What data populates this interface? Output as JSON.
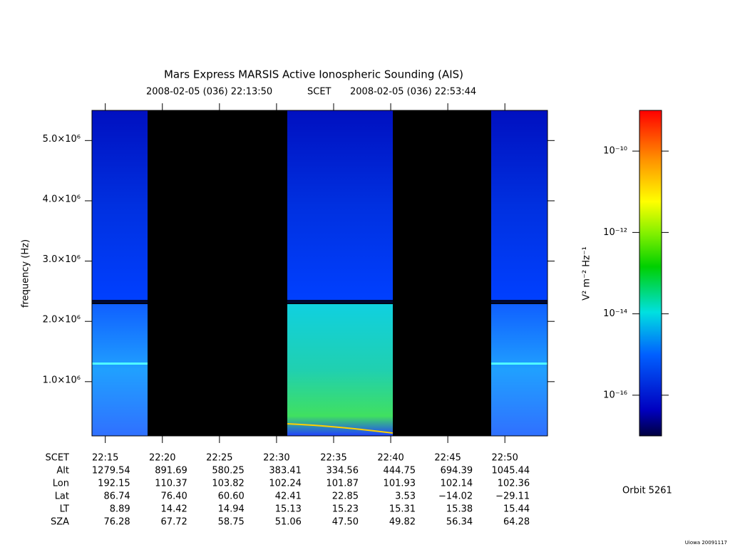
{
  "chart_data": {
    "type": "spectrogram",
    "title": "Mars Express MARSIS Active Ionospheric Sounding (AIS)",
    "subtitle_start": "2008-02-05 (036) 22:13:50",
    "subtitle_mid": "SCET",
    "subtitle_end": "2008-02-05 (036) 22:53:44",
    "y_label": "frequency (Hz)",
    "ylim": [
      100000,
      5500000
    ],
    "yticks": [
      {
        "value": 1000000,
        "label": "1.0×10⁶"
      },
      {
        "value": 2000000,
        "label": "2.0×10⁶"
      },
      {
        "value": 3000000,
        "label": "3.0×10⁶"
      },
      {
        "value": 4000000,
        "label": "4.0×10⁶"
      },
      {
        "value": 5000000,
        "label": "5.0×10⁶"
      }
    ],
    "xlim": [
      "22:13:50",
      "22:53:44"
    ],
    "xticks": [
      "22:15",
      "22:20",
      "22:25",
      "22:30",
      "22:35",
      "22:40",
      "22:45",
      "22:50"
    ],
    "x_row_label": "SCET",
    "ephemeris": [
      {
        "label": "Alt",
        "values": [
          "1279.54",
          "891.69",
          "580.25",
          "383.41",
          "334.56",
          "444.75",
          "694.39",
          "1045.44"
        ]
      },
      {
        "label": "Lon",
        "values": [
          "192.15",
          "110.37",
          "103.82",
          "102.24",
          "101.87",
          "101.93",
          "102.14",
          "102.36"
        ]
      },
      {
        "label": "Lat",
        "values": [
          "86.74",
          "76.40",
          "60.60",
          "42.41",
          "22.85",
          "3.53",
          "−14.02",
          "−29.11"
        ]
      },
      {
        "label": "LT",
        "values": [
          "8.89",
          "14.42",
          "14.94",
          "15.13",
          "15.23",
          "15.31",
          "15.38",
          "15.44"
        ]
      },
      {
        "label": "SZA",
        "values": [
          "76.28",
          "67.72",
          "58.75",
          "51.06",
          "47.50",
          "49.82",
          "56.34",
          "64.28"
        ]
      }
    ],
    "colorbar": {
      "label": "V² m⁻² Hz⁻¹",
      "log_scale": true,
      "lim": [
        1e-17,
        1e-09
      ],
      "ticks": [
        {
          "value": 1e-10,
          "label": "10⁻¹⁰"
        },
        {
          "value": 1e-12,
          "label": "10⁻¹²"
        },
        {
          "value": 1e-14,
          "label": "10⁻¹⁴"
        },
        {
          "value": 1e-16,
          "label": "10⁻¹⁶"
        }
      ]
    },
    "orbit": "Orbit 5261",
    "footer": "Uiowa 20091117"
  }
}
